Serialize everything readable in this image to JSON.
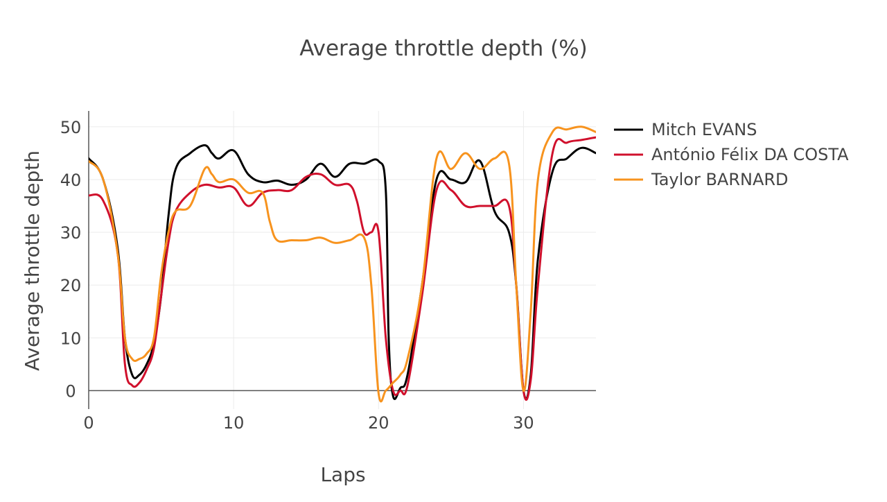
{
  "chart_data": {
    "type": "line",
    "title": "Average throttle depth (%)",
    "xlabel": "Laps",
    "ylabel": "Average throttle depth",
    "xlim": [
      0,
      35
    ],
    "ylim": [
      -3.5,
      53
    ],
    "xticks": [
      0,
      10,
      20,
      30
    ],
    "yticks": [
      0,
      10,
      20,
      30,
      40,
      50
    ],
    "grid": true,
    "legend_position": "top-right",
    "series": [
      {
        "name": "Mitch EVANS",
        "color": "#000000",
        "x": [
          0,
          1,
          2,
          2.5,
          3,
          3.5,
          4,
          4.5,
          5,
          5.5,
          6,
          7,
          8,
          8.5,
          9,
          10,
          11,
          12,
          13,
          14,
          15,
          16,
          17,
          18,
          19,
          20,
          20.5,
          20.7,
          21,
          21.5,
          22,
          23,
          24,
          25,
          26,
          27,
          28,
          29,
          29.5,
          30,
          30.5,
          31,
          32,
          33,
          34,
          35
        ],
        "y": [
          44,
          40,
          27,
          10,
          3,
          3,
          5,
          9,
          18,
          33,
          42,
          45,
          46.5,
          45,
          44,
          45.5,
          41,
          39.5,
          39.8,
          39,
          40,
          43,
          40.5,
          43,
          43,
          43.5,
          38,
          10,
          -1,
          0.5,
          3,
          20,
          40,
          40,
          39.5,
          43.5,
          34,
          30,
          20,
          0,
          3,
          25,
          41.5,
          44,
          46,
          45
        ]
      },
      {
        "name": "António Félix DA COSTA",
        "color": "#d0102c",
        "x": [
          0,
          1,
          2,
          2.5,
          3,
          3.5,
          4,
          4.5,
          5,
          5.5,
          6,
          7,
          8,
          9,
          10,
          11,
          12,
          13,
          14,
          15,
          16,
          17,
          18,
          18.5,
          19,
          19.5,
          20,
          20.5,
          21,
          21.5,
          22,
          23,
          24,
          25,
          26,
          27,
          28,
          29,
          29.5,
          30,
          30.5,
          31,
          32,
          33,
          34,
          35
        ],
        "y": [
          37,
          36,
          26,
          5,
          1,
          1.5,
          4,
          8,
          18,
          28,
          34,
          37.5,
          39,
          38.5,
          38.5,
          35,
          37.5,
          38,
          38,
          40.5,
          41,
          39,
          39,
          36,
          30,
          30,
          30,
          10,
          0,
          0,
          1,
          18,
          38,
          38,
          35,
          35,
          35,
          35,
          20,
          0,
          2,
          20,
          45,
          47,
          47.5,
          48
        ]
      },
      {
        "name": "Taylor BARNARD",
        "color": "#f7931e",
        "x": [
          0,
          1,
          2,
          2.5,
          3,
          3.5,
          4,
          4.5,
          5,
          5.5,
          6,
          7,
          8,
          8.5,
          9,
          10,
          11,
          12,
          12.5,
          13,
          14,
          15,
          16,
          17,
          18,
          19,
          19.5,
          20,
          20.5,
          21,
          21.5,
          22,
          23,
          24,
          25,
          26,
          27,
          28,
          29,
          29.5,
          30,
          30.5,
          31,
          32,
          33,
          34,
          35
        ],
        "y": [
          43.5,
          40,
          26,
          10,
          6,
          6,
          7,
          10,
          22,
          30,
          34,
          35,
          42,
          41,
          39.5,
          40,
          37.5,
          37.5,
          32,
          28.5,
          28.5,
          28.5,
          29,
          28,
          28.5,
          29,
          20,
          -0.5,
          0,
          1.5,
          3,
          6,
          20,
          44,
          42,
          45,
          42,
          44,
          43,
          20,
          0,
          15,
          40,
          49,
          49.5,
          50,
          49
        ]
      }
    ]
  }
}
